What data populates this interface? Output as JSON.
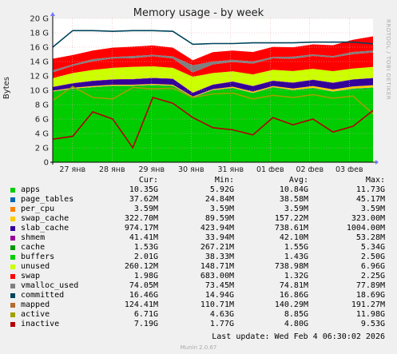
{
  "chart_data": {
    "type": "area",
    "title": "Memory usage - by week",
    "ylabel": "Bytes",
    "ylim": [
      0,
      20
    ],
    "y_unit": "G",
    "yticks": [
      "0",
      "2 G",
      "4 G",
      "6 G",
      "8 G",
      "10 G",
      "12 G",
      "14 G",
      "16 G",
      "18 G",
      "20 G"
    ],
    "xticks": [
      "27 янв",
      "28 янв",
      "29 янв",
      "30 янв",
      "31 янв",
      "01 фев",
      "02 фев",
      "03 фев"
    ],
    "x": [
      0,
      0.5,
      1,
      1.5,
      2,
      2.5,
      3,
      3.5,
      4,
      4.5,
      5,
      5.5,
      6,
      6.5,
      7,
      7.5,
      8
    ],
    "stacked_series": [
      {
        "name": "apps",
        "color": "#00cc00",
        "values": [
          9.8,
          10.2,
          10.4,
          10.6,
          10.6,
          10.7,
          10.6,
          9.0,
          10.0,
          10.3,
          9.6,
          10.4,
          10.0,
          10.3,
          9.8,
          10.2,
          10.35
        ]
      },
      {
        "name": "page_tables",
        "color": "#0066b3",
        "values": [
          0.04,
          0.04,
          0.04,
          0.04,
          0.04,
          0.04,
          0.04,
          0.04,
          0.04,
          0.04,
          0.04,
          0.04,
          0.04,
          0.04,
          0.04,
          0.04,
          0.04
        ]
      },
      {
        "name": "per_cpu",
        "color": "#ff8000",
        "values": [
          0.004,
          0.004,
          0.004,
          0.004,
          0.004,
          0.004,
          0.004,
          0.004,
          0.004,
          0.004,
          0.004,
          0.004,
          0.004,
          0.004,
          0.004,
          0.004,
          0.004
        ]
      },
      {
        "name": "swap_cache",
        "color": "#ffcc00",
        "values": [
          0.1,
          0.12,
          0.15,
          0.14,
          0.13,
          0.15,
          0.14,
          0.1,
          0.12,
          0.15,
          0.18,
          0.16,
          0.2,
          0.25,
          0.28,
          0.3,
          0.32
        ]
      },
      {
        "name": "slab_cache",
        "color": "#330099",
        "values": [
          0.5,
          0.6,
          0.7,
          0.7,
          0.75,
          0.8,
          0.8,
          0.5,
          0.6,
          0.7,
          0.75,
          0.7,
          0.8,
          0.85,
          0.9,
          0.95,
          0.97
        ]
      },
      {
        "name": "shmem",
        "color": "#990099",
        "values": [
          0.04,
          0.04,
          0.04,
          0.04,
          0.04,
          0.04,
          0.04,
          0.04,
          0.04,
          0.04,
          0.04,
          0.04,
          0.04,
          0.04,
          0.04,
          0.04,
          0.04
        ]
      },
      {
        "name": "cache",
        "color": "#ccff00",
        "values": [
          1.2,
          1.4,
          1.5,
          1.6,
          1.7,
          1.6,
          1.5,
          2.2,
          1.6,
          1.4,
          1.6,
          1.5,
          1.6,
          1.5,
          1.6,
          1.5,
          1.53
        ]
      },
      {
        "name": "buffers",
        "color": "#ff0000",
        "values": [
          0.8,
          1.0,
          1.2,
          1.3,
          1.2,
          1.4,
          1.3,
          0.6,
          1.2,
          1.3,
          1.5,
          1.6,
          1.7,
          1.8,
          1.9,
          2.0,
          2.01
        ]
      },
      {
        "name": "unused",
        "color": "#808080",
        "values": [
          0.3,
          0.2,
          0.3,
          0.2,
          0.3,
          0.2,
          0.3,
          1.0,
          0.4,
          0.3,
          0.3,
          0.2,
          0.3,
          0.2,
          0.2,
          0.3,
          0.26
        ]
      },
      {
        "name": "swap",
        "color": "#ff0000",
        "values": [
          1.6,
          1.3,
          1.2,
          1.3,
          1.3,
          1.3,
          1.2,
          0.7,
          1.3,
          1.3,
          1.3,
          1.4,
          1.3,
          1.4,
          1.5,
          1.7,
          1.98
        ]
      }
    ],
    "line_series": [
      {
        "name": "committed",
        "color": "#00455c",
        "values": [
          16.0,
          18.3,
          18.3,
          18.2,
          18.3,
          18.3,
          18.2,
          16.4,
          16.5,
          16.5,
          16.6,
          16.6,
          16.6,
          16.7,
          16.7,
          16.7,
          16.46
        ]
      },
      {
        "name": "active",
        "color": "#a0a000",
        "values": [
          8.6,
          10.5,
          9.0,
          8.8,
          10.4,
          10.2,
          10.3,
          9.0,
          9.5,
          9.6,
          8.8,
          9.3,
          9.0,
          9.4,
          8.9,
          9.2,
          6.71
        ]
      },
      {
        "name": "inactive",
        "color": "#b30000",
        "values": [
          3.2,
          3.6,
          7.0,
          6.0,
          2.0,
          9.0,
          8.2,
          6.2,
          4.8,
          4.5,
          3.8,
          6.2,
          5.2,
          6.0,
          4.2,
          5.0,
          7.19
        ]
      }
    ],
    "legend": {
      "headers": {
        "cur": "Cur:",
        "min": "Min:",
        "avg": "Avg:",
        "max": "Max:"
      },
      "rows": [
        {
          "name": "apps",
          "color": "#00cc00",
          "cur": "10.35G",
          "min": "5.92G",
          "avg": "10.84G",
          "max": "11.73G"
        },
        {
          "name": "page_tables",
          "color": "#0066b3",
          "cur": "37.62M",
          "min": "24.84M",
          "avg": "38.58M",
          "max": "45.17M"
        },
        {
          "name": "per_cpu",
          "color": "#ff8000",
          "cur": "3.59M",
          "min": "3.59M",
          "avg": "3.59M",
          "max": "3.59M"
        },
        {
          "name": "swap_cache",
          "color": "#ffcc00",
          "cur": "322.70M",
          "min": "89.59M",
          "avg": "157.22M",
          "max": "323.00M"
        },
        {
          "name": "slab_cache",
          "color": "#330099",
          "cur": "974.17M",
          "min": "423.94M",
          "avg": "738.61M",
          "max": "1004.00M"
        },
        {
          "name": "shmem",
          "color": "#990099",
          "cur": "41.41M",
          "min": "33.94M",
          "avg": "42.10M",
          "max": "53.28M"
        },
        {
          "name": "cache",
          "color": "#009900",
          "cur": "1.53G",
          "min": "267.21M",
          "avg": "1.55G",
          "max": "5.34G"
        },
        {
          "name": "buffers",
          "color": "#00cc00",
          "cur": "2.01G",
          "min": "38.33M",
          "avg": "1.43G",
          "max": "2.50G"
        },
        {
          "name": "unused",
          "color": "#ccff00",
          "cur": "260.12M",
          "min": "148.71M",
          "avg": "738.98M",
          "max": "6.96G"
        },
        {
          "name": "swap",
          "color": "#ff0000",
          "cur": "1.98G",
          "min": "683.00M",
          "avg": "1.32G",
          "max": "2.25G"
        },
        {
          "name": "vmalloc_used",
          "color": "#808080",
          "cur": "74.05M",
          "min": "73.45M",
          "avg": "74.81M",
          "max": "77.89M"
        },
        {
          "name": "committed",
          "color": "#00455c",
          "cur": "16.46G",
          "min": "14.94G",
          "avg": "16.86G",
          "max": "18.69G"
        },
        {
          "name": "mapped",
          "color": "#b36b2e",
          "cur": "124.41M",
          "min": "110.71M",
          "avg": "140.29M",
          "max": "191.27M"
        },
        {
          "name": "active",
          "color": "#a0a000",
          "cur": "6.71G",
          "min": "4.63G",
          "avg": "8.85G",
          "max": "11.98G"
        },
        {
          "name": "inactive",
          "color": "#b30000",
          "cur": "7.19G",
          "min": "1.77G",
          "avg": "4.80G",
          "max": "9.53G"
        }
      ]
    }
  },
  "side_label": "RRDTOOL / TOBI OETIKER",
  "last_update": "Last update: Wed Feb  4 06:30:02 2026",
  "munin_version": "Munin 2.0.67"
}
